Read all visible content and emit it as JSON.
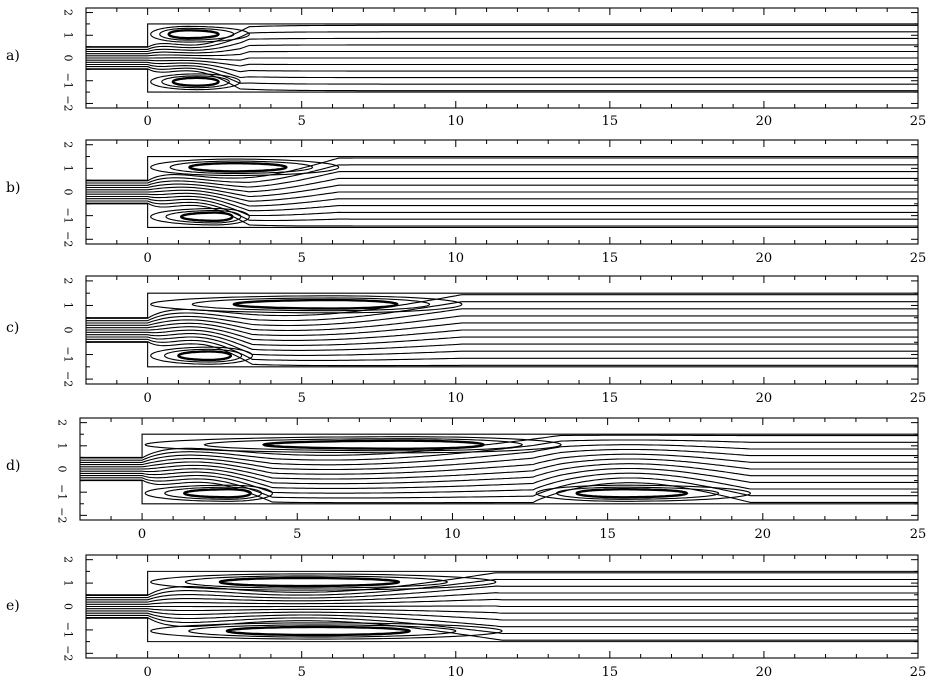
{
  "chart_data": [
    {
      "type": "line",
      "panel_label": "a)",
      "title": "",
      "xlabel": "",
      "ylabel": "",
      "xlim": [
        -2,
        25
      ],
      "ylim": [
        -2.2,
        2.2
      ],
      "x_ticks": [
        "0",
        "5",
        "10",
        "15",
        "20",
        "25"
      ],
      "y_ticks": [
        "2",
        "1",
        "0",
        "−1",
        "−2"
      ],
      "channel_half_height": 1.5,
      "inlet_half_height": 0.5,
      "step_x": 0,
      "streamline_count": 11,
      "recirculation_zones": [
        {
          "side": "upper",
          "x_start": 0,
          "x_end": 3.3,
          "core_x": 1.3
        },
        {
          "side": "lower",
          "x_start": 0,
          "x_end": 3.0,
          "core_x": 1.6
        }
      ]
    },
    {
      "type": "line",
      "panel_label": "b)",
      "title": "",
      "xlabel": "",
      "ylabel": "",
      "xlim": [
        -2,
        25
      ],
      "ylim": [
        -2.2,
        2.2
      ],
      "x_ticks": [
        "0",
        "5",
        "10",
        "15",
        "20",
        "25"
      ],
      "y_ticks": [
        "2",
        "1",
        "0",
        "−1",
        "−2"
      ],
      "channel_half_height": 1.5,
      "inlet_half_height": 0.5,
      "step_x": 0,
      "streamline_count": 11,
      "recirculation_zones": [
        {
          "side": "upper",
          "x_start": 0,
          "x_end": 6.2,
          "core_x": 2.8
        },
        {
          "side": "lower",
          "x_start": 0,
          "x_end": 3.3,
          "core_x": 2.2
        }
      ]
    },
    {
      "type": "line",
      "panel_label": "c)",
      "title": "",
      "xlabel": "",
      "ylabel": "",
      "xlim": [
        -2,
        25
      ],
      "ylim": [
        -2.2,
        2.2
      ],
      "x_ticks": [
        "0",
        "5",
        "10",
        "15",
        "20",
        "25"
      ],
      "y_ticks": [
        "2",
        "1",
        "0",
        "−1",
        "−2"
      ],
      "channel_half_height": 1.5,
      "inlet_half_height": 0.5,
      "step_x": 0,
      "streamline_count": 11,
      "recirculation_zones": [
        {
          "side": "upper",
          "x_start": 0,
          "x_end": 10.2,
          "core_x": 6.0
        },
        {
          "side": "lower",
          "x_start": 0,
          "x_end": 3.4,
          "core_x": 2.0
        }
      ]
    },
    {
      "type": "line",
      "panel_label": "d)",
      "title": "",
      "xlabel": "",
      "ylabel": "",
      "xlim": [
        -2,
        25
      ],
      "ylim": [
        -2.2,
        2.2
      ],
      "x_ticks": [
        "0",
        "5",
        "10",
        "15",
        "20",
        "25"
      ],
      "y_ticks": [
        "2",
        "1",
        "0",
        "−1",
        "−2"
      ],
      "channel_half_height": 1.5,
      "inlet_half_height": 0.5,
      "step_x": 0,
      "streamline_count": 11,
      "recirculation_zones": [
        {
          "side": "upper",
          "x_start": 0,
          "x_end": 13.5,
          "core_x": 8.5
        },
        {
          "side": "lower",
          "x_start": 0,
          "x_end": 4.2,
          "core_x": 2.8
        },
        {
          "side": "lower",
          "x_start": 12.6,
          "x_end": 19.6,
          "core_x": 15.5
        }
      ]
    },
    {
      "type": "line",
      "panel_label": "e)",
      "title": "",
      "xlabel": "",
      "ylabel": "",
      "xlim": [
        -2,
        25
      ],
      "ylim": [
        -2.2,
        2.2
      ],
      "x_ticks": [
        "0",
        "5",
        "10",
        "15",
        "20",
        "25"
      ],
      "y_ticks": [
        "2",
        "1",
        "0",
        "−1",
        "−2"
      ],
      "channel_half_height": 1.5,
      "inlet_half_height": 0.5,
      "step_x": 0,
      "streamline_count": 11,
      "recirculation_zones": [
        {
          "side": "upper",
          "x_start": 0,
          "x_end": 11.3,
          "core_x": 5.0
        },
        {
          "side": "lower",
          "x_start": 0,
          "x_end": 11.5,
          "core_x": 5.5
        }
      ]
    }
  ]
}
